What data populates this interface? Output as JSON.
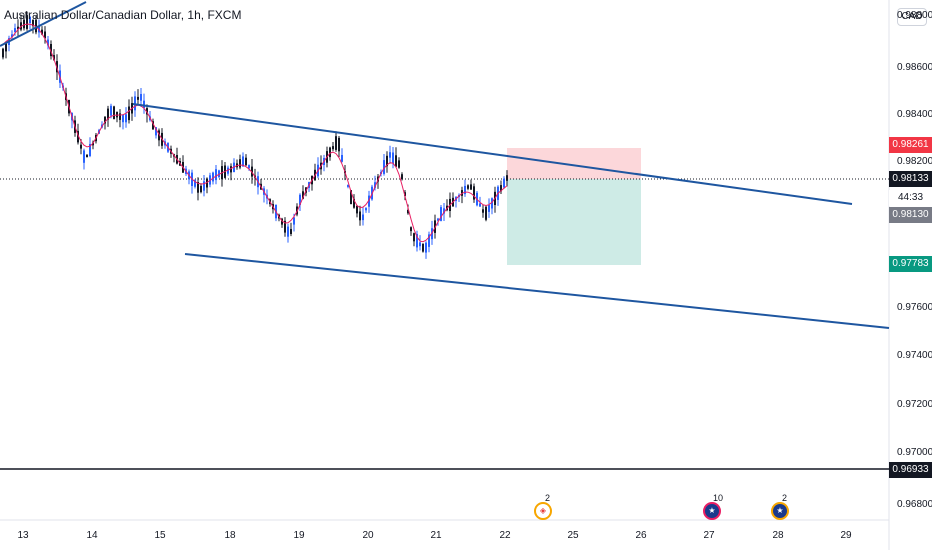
{
  "header": {
    "title": "Australian Dollar/Canadian Dollar, 1h, FXCM",
    "currency_badge": "CAD"
  },
  "y_axis": {
    "ticks": [
      "0.98800",
      "0.98600",
      "0.98400",
      "0.98200",
      "0.97600",
      "0.97400",
      "0.97200",
      "0.97000",
      "0.96800"
    ]
  },
  "x_axis": {
    "ticks": [
      "13",
      "14",
      "15",
      "18",
      "19",
      "20",
      "21",
      "22",
      "25",
      "26",
      "27",
      "28",
      "29"
    ]
  },
  "price_labels": {
    "stop_loss": {
      "text": "0.98261",
      "bg": "#f23645",
      "fg": "#ffffff"
    },
    "current": {
      "text": "0.98133",
      "bg": "#131722",
      "fg": "#ffffff"
    },
    "countdown": {
      "text": "44:33",
      "bg": "#ffffff",
      "fg": "#131722"
    },
    "entry": {
      "text": "0.98130",
      "bg": "#787b86",
      "fg": "#ffffff"
    },
    "take_profit": {
      "text": "0.97783",
      "bg": "#089981",
      "fg": "#ffffff"
    },
    "horizontal_line": {
      "text": "0.96933",
      "bg": "#131722",
      "fg": "#ffffff"
    }
  },
  "events": [
    {
      "icon": "canada-flag-icon",
      "count": "2",
      "ring": "#f7a600"
    },
    {
      "icon": "australia-flag-icon",
      "count": "10",
      "ring": "#e91e63"
    },
    {
      "icon": "australia-flag-icon",
      "count": "2",
      "ring": "#f7a600"
    }
  ],
  "colors": {
    "channel_line": "#1e56a0",
    "up_candle": "#2962ff",
    "down_candle": "#131722",
    "moving_average": "#e91e63",
    "stop_zone": "rgba(242,54,69,0.2)",
    "target_zone": "rgba(8,153,129,0.2)"
  }
}
